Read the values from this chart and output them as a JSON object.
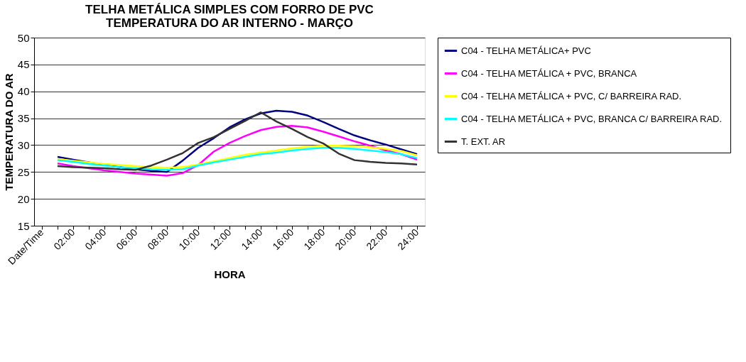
{
  "chart_data": {
    "type": "line",
    "title": [
      "TELHA METÁLICA SIMPLES COM FORRO DE PVC",
      "TEMPERATURA DO AR INTERNO - MARÇO"
    ],
    "xlabel": "HORA",
    "ylabel": "TEMPERATURA DO AR",
    "categories": [
      "Date/Time",
      null,
      "02:00",
      null,
      "04:00",
      null,
      "06:00",
      null,
      "08:00",
      null,
      "10:00",
      null,
      "12:00",
      null,
      "14:00",
      null,
      "16:00",
      null,
      "18:00",
      null,
      "20:00",
      null,
      "22:00",
      null,
      "24:00"
    ],
    "ylim": [
      15,
      50
    ],
    "yticks": [
      15,
      20,
      25,
      30,
      35,
      40,
      45,
      50
    ],
    "grid": "y",
    "legend": "right",
    "series": [
      {
        "name": "C04 - TELHA METÁLICA+ PVC",
        "color": "#000080",
        "values": [
          null,
          27.8,
          27.3,
          26.8,
          26.3,
          25.9,
          25.5,
          25.2,
          25.0,
          27.1,
          29.5,
          31.3,
          33.3,
          34.8,
          35.9,
          36.4,
          36.2,
          35.5,
          34.3,
          33.0,
          31.8,
          30.9,
          30.1,
          29.2,
          28.3
        ]
      },
      {
        "name": "C04 - TELHA METÁLICA +  PVC, BRANCA",
        "color": "#ff00ff",
        "values": [
          null,
          26.6,
          26.1,
          25.7,
          25.3,
          25.0,
          24.7,
          24.5,
          24.3,
          24.8,
          26.3,
          28.8,
          30.4,
          31.7,
          32.8,
          33.4,
          33.6,
          33.3,
          32.5,
          31.6,
          30.7,
          29.9,
          29.0,
          28.3,
          27.3
        ]
      },
      {
        "name": "C04 - TELHA METÁLICA + PVC, C/ BARREIRA RAD.",
        "color": "#ffff00",
        "values": [
          null,
          27.4,
          27.1,
          26.8,
          26.5,
          26.3,
          26.1,
          25.9,
          25.8,
          25.9,
          26.4,
          27.0,
          27.6,
          28.2,
          28.6,
          29.0,
          29.4,
          29.7,
          29.9,
          29.9,
          29.8,
          29.6,
          29.3,
          28.9,
          28.1
        ]
      },
      {
        "name": "C04 - TELHA METÁLICA + PVC, BRANCA C/ BARREIRA RAD.",
        "color": "#00ffff",
        "values": [
          null,
          27.2,
          26.9,
          26.5,
          26.2,
          25.9,
          25.7,
          25.5,
          25.4,
          25.5,
          26.2,
          26.8,
          27.3,
          27.8,
          28.3,
          28.6,
          29.0,
          29.3,
          29.5,
          29.5,
          29.3,
          29.0,
          28.7,
          28.3,
          27.6
        ]
      },
      {
        "name": "T. EXT. AR",
        "color": "#333333",
        "values": [
          null,
          26.1,
          25.9,
          25.8,
          25.7,
          25.5,
          25.4,
          26.2,
          27.3,
          28.5,
          30.4,
          31.5,
          33.0,
          34.5,
          36.1,
          34.4,
          33.0,
          31.5,
          30.3,
          28.4,
          27.2,
          26.9,
          26.7,
          26.6,
          26.4
        ]
      }
    ]
  }
}
